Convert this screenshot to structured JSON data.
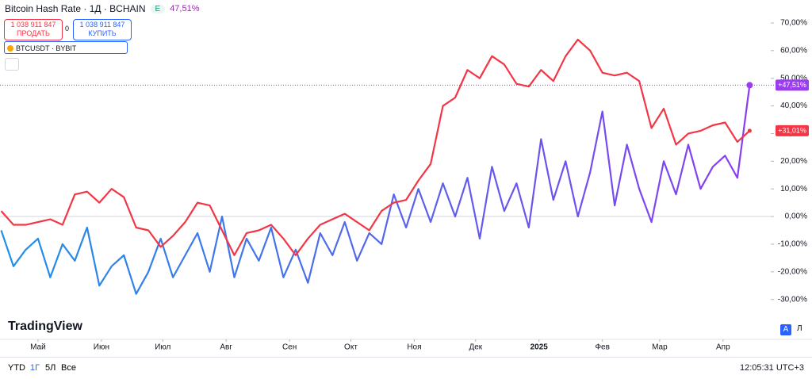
{
  "chart_data": {
    "type": "line",
    "x": [
      0,
      6,
      12,
      18,
      24,
      30,
      36,
      42,
      48,
      54,
      60,
      66,
      72,
      78,
      84,
      90,
      96,
      102,
      108,
      114,
      120,
      126,
      132,
      138,
      144,
      150,
      156,
      162,
      168,
      174,
      180,
      186,
      192,
      198,
      204,
      210,
      216,
      222,
      228,
      234,
      240,
      246,
      252,
      258,
      264,
      270,
      276,
      282,
      288,
      294,
      300,
      306,
      312,
      318,
      324,
      330,
      336,
      342,
      348,
      354,
      360,
      366
    ],
    "series": [
      {
        "name": "Bitcoin Hash Rate · 1Д · BCHAIN",
        "color": [
          "#1e90e8",
          "#8a3cf0"
        ],
        "last_label": "+47,51%",
        "last_color": "#9c3cf0",
        "values": [
          -5,
          -18,
          -12,
          -8,
          -22,
          -10,
          -16,
          -4,
          -25,
          -18,
          -14,
          -28,
          -20,
          -8,
          -22,
          -14,
          -6,
          -20,
          0,
          -22,
          -8,
          -16,
          -4,
          -22,
          -12,
          -24,
          -6,
          -14,
          -2,
          -16,
          -6,
          -10,
          8,
          -4,
          10,
          -2,
          12,
          0,
          14,
          -8,
          18,
          2,
          12,
          -4,
          28,
          6,
          20,
          0,
          16,
          38,
          4,
          26,
          10,
          -2,
          20,
          8,
          26,
          10,
          18,
          22,
          14,
          47.51
        ]
      },
      {
        "name": "BTCUSDT · BYBIT",
        "color": "#f23645",
        "last_label": "+31,01%",
        "last_color": "#f23645",
        "values": [
          2,
          -3,
          -3,
          -2,
          -1,
          -3,
          8,
          9,
          5,
          10,
          7,
          -4,
          -5,
          -11,
          -7,
          -2,
          5,
          4,
          -5,
          -14,
          -6,
          -5,
          -3,
          -8,
          -14,
          -8,
          -3,
          -1,
          1,
          -2,
          -5,
          2,
          5,
          6,
          13,
          19,
          40,
          43,
          53,
          50,
          58,
          55,
          48,
          47,
          53,
          49,
          58,
          64,
          60,
          52,
          51,
          52,
          49,
          32,
          39,
          26,
          30,
          31,
          33,
          34,
          27,
          31.01
        ]
      }
    ],
    "xlim": [
      0,
      374
    ],
    "xticks": [
      {
        "value": 18,
        "label": "Май"
      },
      {
        "value": 49,
        "label": "Июн"
      },
      {
        "value": 79,
        "label": "Июл"
      },
      {
        "value": 110,
        "label": "Авг"
      },
      {
        "value": 141,
        "label": "Сен"
      },
      {
        "value": 171,
        "label": "Окт"
      },
      {
        "value": 202,
        "label": "Ноя"
      },
      {
        "value": 232,
        "label": "Дек"
      },
      {
        "value": 263,
        "label": "2025"
      },
      {
        "value": 294,
        "label": "Фев"
      },
      {
        "value": 322,
        "label": "Мар"
      },
      {
        "value": 353,
        "label": "Апр"
      }
    ],
    "ylim": [
      -43,
      72
    ],
    "yticks": [
      {
        "value": 70,
        "label": "70,00%"
      },
      {
        "value": 60,
        "label": "60,00%"
      },
      {
        "value": 50,
        "label": "50,00%"
      },
      {
        "value": 40,
        "label": "40,00%"
      },
      {
        "value": 30,
        "label": "30,00%"
      },
      {
        "value": 20,
        "label": "20,00%"
      },
      {
        "value": 10,
        "label": "10,00%"
      },
      {
        "value": 0,
        "label": "0,00%"
      },
      {
        "value": -10,
        "label": "-10,00%"
      },
      {
        "value": -20,
        "label": "-20,00%"
      },
      {
        "value": -30,
        "label": "-30,00%"
      }
    ]
  },
  "header": {
    "badge": "E",
    "change": "47,51%",
    "sell_price": "1 038 911 847",
    "sell_label": "ПРОДАТЬ",
    "spread": "0",
    "buy_price": "1 038 911 847",
    "buy_label": "КУПИТЬ"
  },
  "logo": "TradingView",
  "footer": {
    "ranges": [
      "YTD",
      "1Г",
      "5Л",
      "Все"
    ],
    "clock": "12:05:31 UTC+3",
    "auto": "A",
    "log": "Л"
  }
}
